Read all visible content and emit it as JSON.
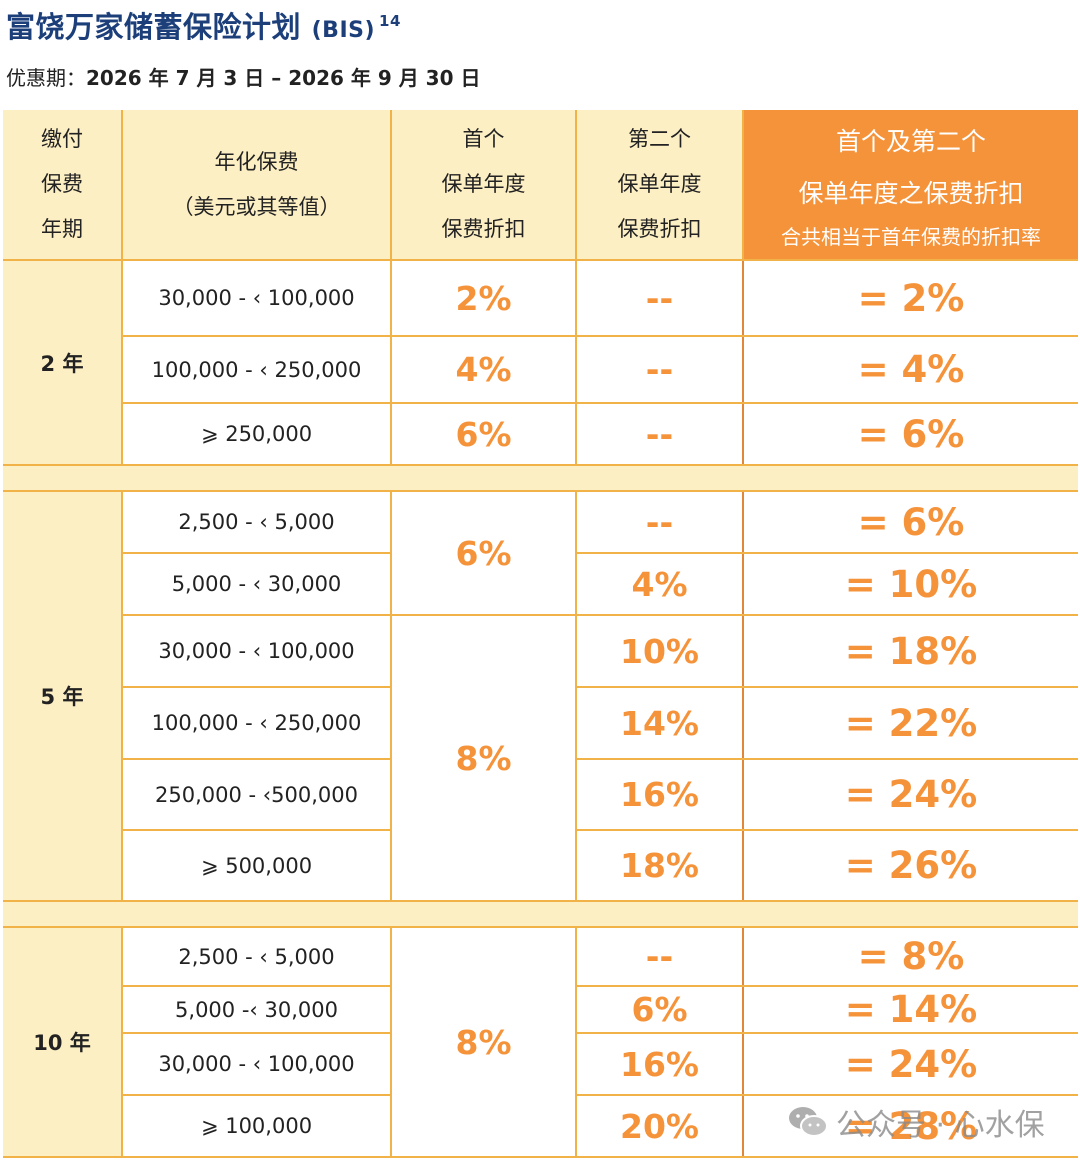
{
  "header": {
    "title": "富饶万家储蓄保险计划",
    "title_code": "(BIS)",
    "title_note": "14",
    "period_label": "优惠期：",
    "period_value": "2026 年 7 月 3 日 – 2026 年 9 月 30 日"
  },
  "table": {
    "columns": {
      "term": [
        "缴付",
        "保费",
        "年期"
      ],
      "premium": [
        "年化保费",
        "（美元或其等值）"
      ],
      "first_year": [
        "首个",
        "保单年度",
        "保费折扣"
      ],
      "second_year": [
        "第二个",
        "保单年度",
        "保费折扣"
      ],
      "total_l1": "首个及第二个",
      "total_l2": "保单年度之保费折扣",
      "total_l3": "合共相当于首年保费的折扣率"
    },
    "groups": [
      {
        "term": "2 年",
        "rows": [
          {
            "premium": "30,000 - ‹ 100,000",
            "first": "2%",
            "second": "--",
            "total": "= 2%"
          },
          {
            "premium": "100,000 - ‹ 250,000",
            "first": "4%",
            "second": "--",
            "total": "= 4%"
          },
          {
            "premium": "⩾ 250,000",
            "first": "6%",
            "second": "--",
            "total": "= 6%"
          }
        ]
      },
      {
        "term": "5 年",
        "first_merged": [
          "6%",
          "8%"
        ],
        "rows": [
          {
            "premium": "2,500 - ‹ 5,000",
            "second": "--",
            "total": "= 6%"
          },
          {
            "premium": "5,000 - ‹ 30,000",
            "second": "4%",
            "total": "= 10%"
          },
          {
            "premium": "30,000 - ‹ 100,000",
            "second": "10%",
            "total": "= 18%"
          },
          {
            "premium": "100,000 - ‹ 250,000",
            "second": "14%",
            "total": "= 22%"
          },
          {
            "premium": "250,000 - ‹500,000",
            "second": "16%",
            "total": "= 24%"
          },
          {
            "premium": "⩾ 500,000",
            "second": "18%",
            "total": "= 26%"
          }
        ]
      },
      {
        "term": "10 年",
        "first_merged": "8%",
        "rows": [
          {
            "premium": "2,500 - ‹ 5,000",
            "second": "--",
            "total": "= 8%"
          },
          {
            "premium": "5,000 -‹ 30,000",
            "second": "6%",
            "total": "= 14%"
          },
          {
            "premium": "30,000 - ‹ 100,000",
            "second": "16%",
            "total": "= 24%"
          },
          {
            "premium": "⩾ 100,000",
            "second": "20%",
            "total": "= 28%"
          }
        ]
      }
    ]
  },
  "watermark": {
    "icon": "wechat-icon",
    "text": "公众号 · 心水保"
  },
  "colors": {
    "title": "#1c3f7a",
    "accent": "#f5933a",
    "header_bg": "#fdefc4",
    "border": "#f1b248"
  }
}
